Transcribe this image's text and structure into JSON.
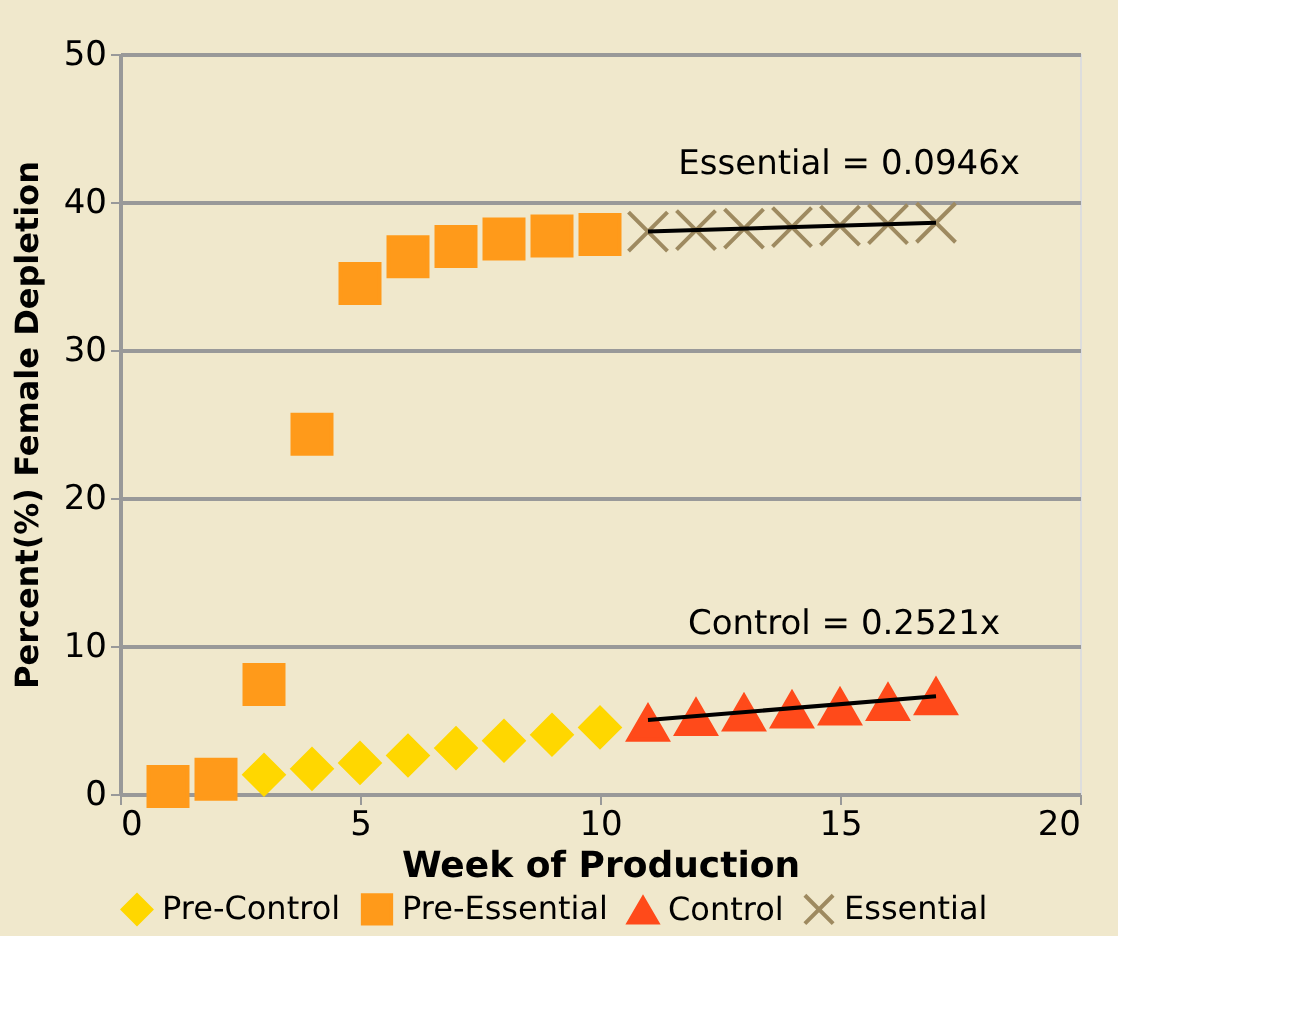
{
  "chart_data": {
    "type": "scatter",
    "xlabel": "Week of Production",
    "ylabel": "Percent(%) Female Depletion",
    "xlim": [
      0,
      20
    ],
    "xticks": [
      0,
      5,
      10,
      15,
      20
    ],
    "ylim": [
      0,
      50
    ],
    "yticks": [
      0,
      10,
      20,
      30,
      40,
      50
    ],
    "grid": "y",
    "legend": "bottom",
    "series": [
      {
        "name": "Pre-Control",
        "color": "#ffd700",
        "marker": "diamond",
        "x": [
          3,
          4,
          5,
          6,
          7,
          8,
          9,
          10
        ],
        "values": [
          1.3,
          1.7,
          2.1,
          2.6,
          3.1,
          3.6,
          4.0,
          4.5
        ]
      },
      {
        "name": "Pre-Essential",
        "color": "#ff9a1a",
        "marker": "square",
        "x": [
          1,
          2,
          3,
          4,
          5,
          6,
          7,
          8,
          9,
          10
        ],
        "values": [
          0.5,
          1.0,
          7.4,
          24.3,
          34.5,
          36.3,
          37.0,
          37.5,
          37.7,
          37.8
        ]
      },
      {
        "name": "Control",
        "color": "#ff4a1a",
        "marker": "triangle",
        "x": [
          11,
          12,
          13,
          14,
          15,
          16,
          17
        ],
        "values": [
          4.8,
          5.2,
          5.5,
          5.7,
          5.9,
          6.2,
          6.6
        ]
      },
      {
        "name": "Essential",
        "color": "#9e8a60",
        "marker": "cross",
        "x": [
          11,
          12,
          13,
          14,
          15,
          16,
          17
        ],
        "values": [
          38.0,
          38.1,
          38.2,
          38.3,
          38.4,
          38.5,
          38.6
        ]
      },
      {
        "type": "line",
        "color": "#000000",
        "marker": "none",
        "x": [
          11,
          17
        ],
        "values": [
          5.0,
          6.6
        ]
      },
      {
        "type": "line",
        "color": "#000000",
        "marker": "none",
        "x": [
          11,
          17
        ],
        "values": [
          38.0,
          38.6
        ]
      }
    ],
    "annotations": [
      "Essential = 0.0946x",
      "Control = 0.2521x"
    ]
  }
}
